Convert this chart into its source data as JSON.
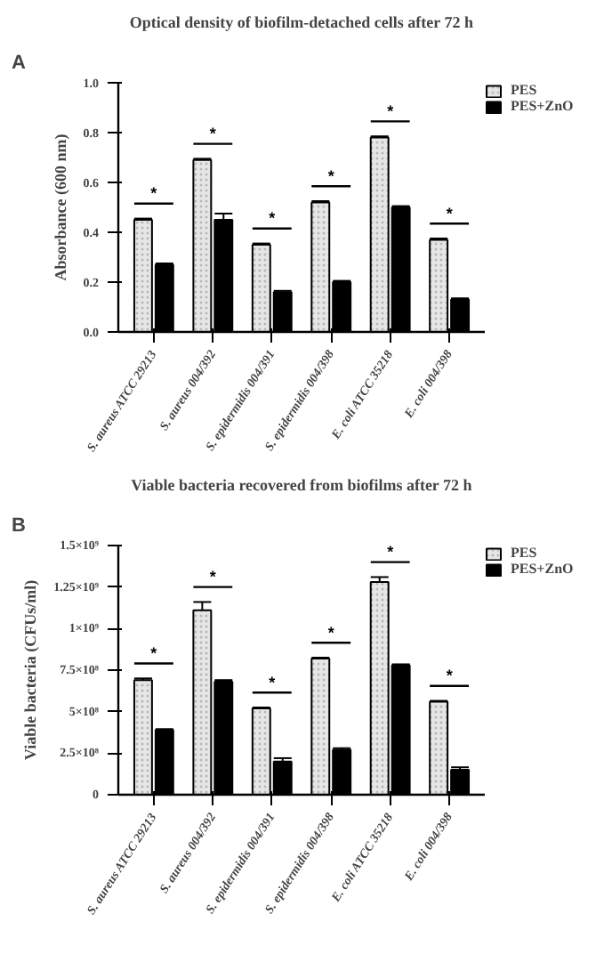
{
  "chart_data": [
    {
      "type": "bar",
      "title": "Optical density of biofilm-detached cells after 72 h",
      "ylabel": "Absorbance (600 nm)",
      "categories": [
        "S. aureus ATCC 29213",
        "S. aureus 004/392",
        "S. epidermidis 004/391",
        "S. epidermidis 004/398",
        "E. coli ATCC 35218",
        "E. coli 004/398"
      ],
      "series": [
        {
          "name": "PES",
          "color": "#e6e6e6",
          "values": [
            0.45,
            0.69,
            0.35,
            0.52,
            0.78,
            0.37
          ],
          "errors": [
            0.005,
            0.005,
            0.005,
            0.005,
            0.005,
            0.005
          ]
        },
        {
          "name": "PES+ZnO",
          "color": "#000000",
          "values": [
            0.27,
            0.45,
            0.16,
            0.2,
            0.5,
            0.13
          ],
          "errors": [
            0.005,
            0.025,
            0.005,
            0.005,
            0.005,
            0.005
          ]
        }
      ],
      "ylim": [
        0,
        1.0
      ],
      "yticks": [
        {
          "value": 0,
          "label": "0.0"
        },
        0.2,
        0.4,
        0.6,
        0.8,
        {
          "value": 1,
          "label": "1.0"
        }
      ],
      "grid": false,
      "legend": "top right",
      "annotations": [
        "A",
        "*",
        "*",
        "*",
        "*",
        "*",
        "*"
      ]
    },
    {
      "type": "bar",
      "title": "Viable bacteria recovered from biofilms after 72 h",
      "ylabel": "Viable bacteria (CFUs/ml)",
      "categories": [
        "S. aureus ATCC 29213",
        "S. aureus 004/392",
        "S. epidermidis 004/391",
        "S. epidermidis 004/398",
        "E. coli ATCC 35218",
        "E. coli 004/398"
      ],
      "series": [
        {
          "name": "PES",
          "color": "#e6e6e6",
          "values": [
            690000000,
            1110000000,
            520000000,
            820000000,
            1280000000,
            560000000
          ],
          "errors": [
            10000000,
            50000000,
            5000000,
            5000000,
            30000000,
            5000000
          ]
        },
        {
          "name": "PES+ZnO",
          "color": "#000000",
          "values": [
            390000000,
            680000000,
            200000000,
            270000000,
            780000000,
            150000000
          ],
          "errors": [
            5000000,
            10000000,
            20000000,
            10000000,
            5000000,
            15000000
          ]
        }
      ],
      "ylim": [
        0,
        1500000000
      ],
      "yticks": [
        0,
        {
          "value": 250000000,
          "label": "2.5×10⁸"
        },
        {
          "value": 500000000,
          "label": "5×10⁸"
        },
        {
          "value": 750000000,
          "label": "7.5×10⁸"
        },
        {
          "value": 1000000000,
          "label": "1×10⁹"
        },
        {
          "value": 1250000000,
          "label": "1.25×10⁹"
        },
        {
          "value": 1500000000,
          "label": "1.5×10⁹"
        }
      ],
      "grid": false,
      "legend": "top right",
      "annotations": [
        "B",
        "*",
        "*",
        "*",
        "*",
        "*",
        "*"
      ]
    }
  ]
}
